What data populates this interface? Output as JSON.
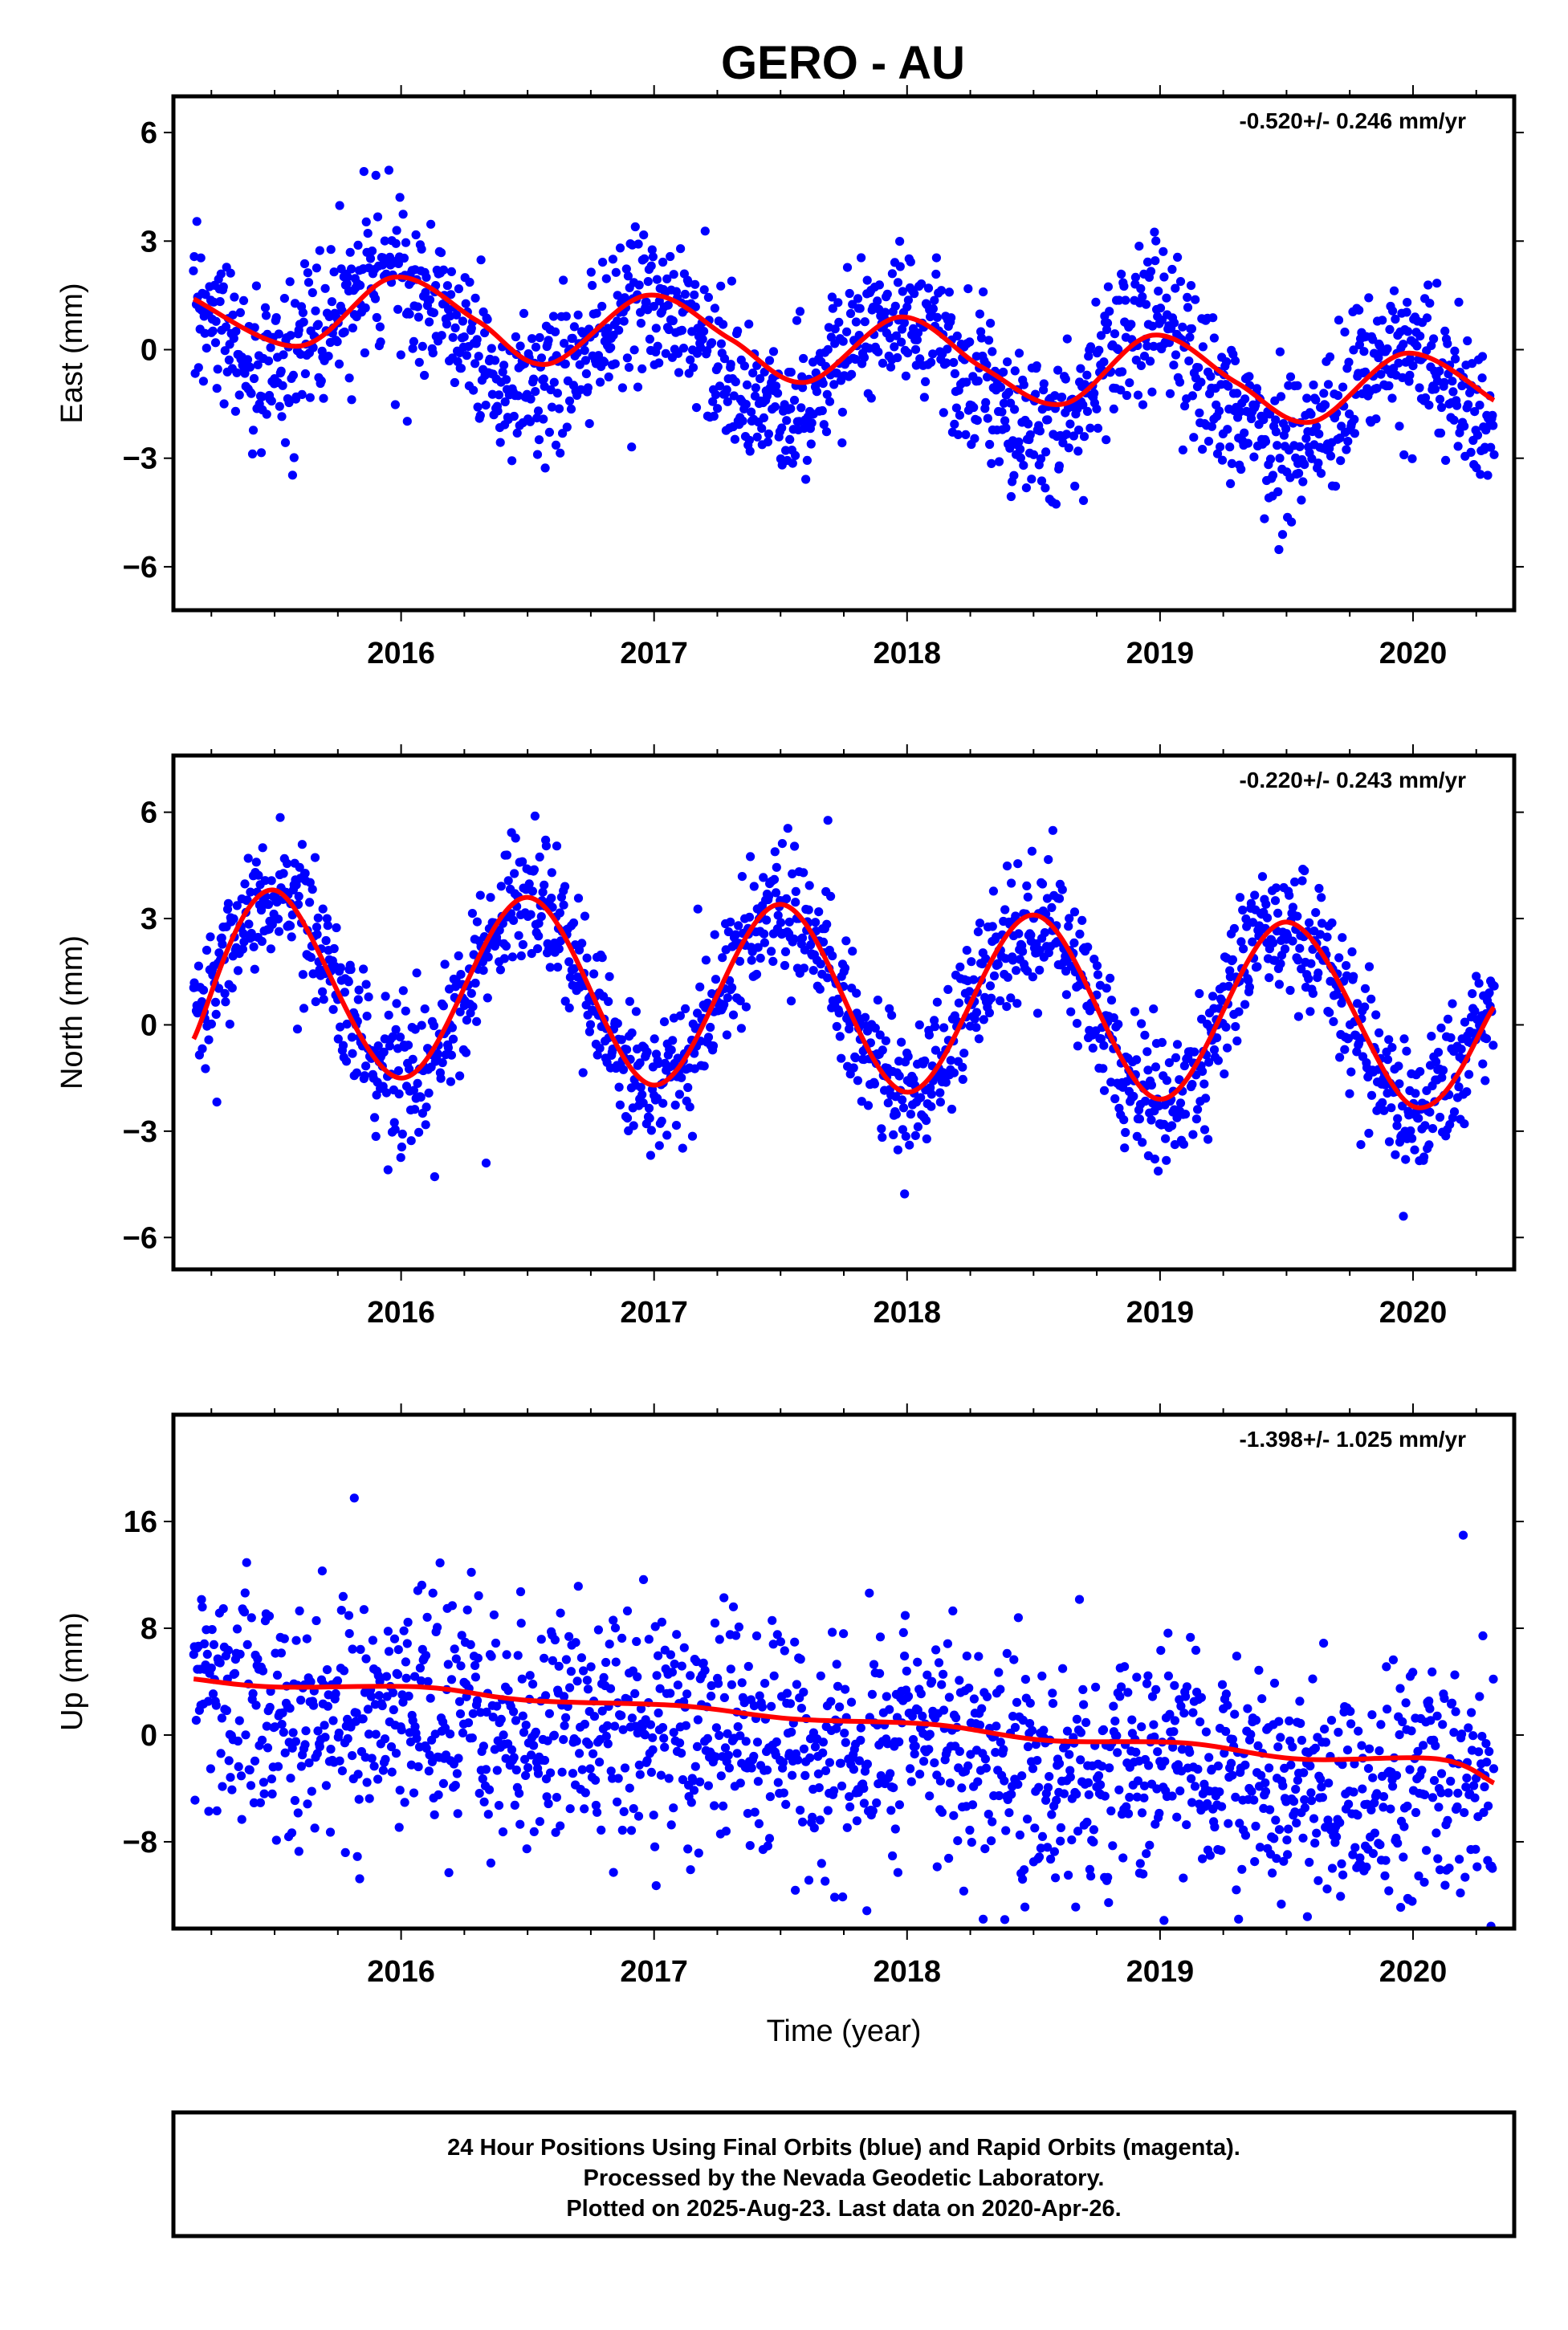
{
  "title": "GERO - AU",
  "colors": {
    "data_points": "#0000ff",
    "trend_line": "#ff0000",
    "frame": "#000000"
  },
  "chart_data": [
    {
      "type": "scatter",
      "title": "GERO - AU",
      "ylabel": "East (mm)",
      "xlabel": "",
      "xlim": [
        2015.1,
        2020.4
      ],
      "ylim": [
        -7.2,
        7.0
      ],
      "yticks": [
        6,
        3,
        0,
        -3,
        -6
      ],
      "ytick_labels": [
        "6",
        "3",
        "0",
        "−3",
        "−6"
      ],
      "xticks": [
        2016,
        2017,
        2018,
        2019,
        2020
      ],
      "xtick_labels": [
        "2016",
        "2017",
        "2018",
        "2019",
        "2020"
      ],
      "rate": "-0.520+/- 0.246 mm/yr",
      "model": {
        "offset": 1.0,
        "velocity": -0.52,
        "annual_amplitude": 1.45,
        "annual_peak_phase": 0.98,
        "start": 2015.18,
        "end": 2020.32
      },
      "series": [
        {
          "name": "Final Orbits",
          "marker": "dot",
          "color": "#0000ff",
          "start": 2015.18,
          "end": 2020.32,
          "samples": 1620,
          "scatter_sd": 1.05
        },
        {
          "name": "model",
          "marker": "line",
          "color": "#ff0000",
          "x": [
            2015.18,
            2015.6,
            2015.97,
            2016.3,
            2016.58,
            2016.97,
            2017.3,
            2017.6,
            2017.97,
            2018.3,
            2018.62,
            2018.97,
            2019.3,
            2019.6,
            2019.97,
            2020.32
          ],
          "y": [
            1.4,
            0.1,
            2.0,
            0.8,
            -0.4,
            1.5,
            0.3,
            -0.9,
            0.9,
            -0.5,
            -1.5,
            0.4,
            -0.9,
            -2.0,
            -0.1,
            -1.4
          ]
        }
      ]
    },
    {
      "type": "scatter",
      "ylabel": "North (mm)",
      "xlabel": "",
      "xlim": [
        2015.1,
        2020.4
      ],
      "ylim": [
        -6.9,
        7.6
      ],
      "yticks": [
        6,
        3,
        0,
        -3,
        -6
      ],
      "ytick_labels": [
        "6",
        "3",
        "0",
        "−3",
        "−6"
      ],
      "xticks": [
        2016,
        2017,
        2018,
        2019,
        2020
      ],
      "xtick_labels": [
        "2016",
        "2017",
        "2018",
        "2019",
        "2020"
      ],
      "rate": "-0.220+/- 0.243 mm/yr",
      "model": {
        "offset": 1.2,
        "velocity": -0.22,
        "annual_amplitude": 2.6,
        "annual_peak_phase": 0.5,
        "start": 2015.18,
        "end": 2020.32
      },
      "series": [
        {
          "name": "Final Orbits",
          "marker": "dot",
          "color": "#0000ff",
          "start": 2015.18,
          "end": 2020.32,
          "samples": 1620,
          "scatter_sd": 0.95
        },
        {
          "name": "model",
          "marker": "line",
          "color": "#ff0000",
          "x": [
            2015.18,
            2015.5,
            2016.0,
            2016.5,
            2017.0,
            2017.5,
            2018.0,
            2018.5,
            2019.0,
            2019.5,
            2020.0,
            2020.32
          ],
          "y": [
            -0.4,
            3.8,
            -1.5,
            3.6,
            -1.7,
            3.4,
            -1.9,
            3.1,
            -2.1,
            2.9,
            -2.3,
            0.5
          ]
        }
      ]
    },
    {
      "type": "scatter",
      "ylabel": "Up (mm)",
      "xlabel": "Time (year)",
      "xlim": [
        2015.1,
        2020.4
      ],
      "ylim": [
        -14.5,
        24.0
      ],
      "yticks": [
        16,
        8,
        0,
        -8
      ],
      "ytick_labels": [
        "16",
        "8",
        "0",
        "−8"
      ],
      "xticks": [
        2016,
        2017,
        2018,
        2019,
        2020
      ],
      "xtick_labels": [
        "2016",
        "2017",
        "2018",
        "2019",
        "2020"
      ],
      "rate": "-1.398+/- 1.025 mm/yr",
      "model": {
        "offset": 2.8,
        "velocity": -1.398,
        "annual_amplitude": 1.0,
        "annual_peak_phase": 0.08,
        "start": 2015.18,
        "end": 2020.32
      },
      "series": [
        {
          "name": "Final Orbits",
          "marker": "dot",
          "color": "#0000ff",
          "start": 2015.18,
          "end": 2020.32,
          "samples": 1620,
          "scatter_sd": 4.3
        },
        {
          "name": "model",
          "marker": "line",
          "color": "#ff0000",
          "x": [
            2015.18,
            2015.5,
            2016.08,
            2016.5,
            2017.1,
            2017.55,
            2018.1,
            2018.55,
            2019.1,
            2019.55,
            2020.1,
            2020.32
          ],
          "y": [
            4.2,
            3.6,
            3.6,
            2.6,
            2.2,
            1.2,
            0.8,
            -0.4,
            -0.6,
            -1.8,
            -1.8,
            -3.6
          ]
        }
      ]
    }
  ],
  "footer": {
    "line1": "24 Hour Positions Using Final Orbits (blue) and Rapid Orbits (magenta).",
    "line2": "Processed by the Nevada Geodetic Laboratory.",
    "line3": "Plotted on 2025-Aug-23. Last data on 2020-Apr-26."
  }
}
